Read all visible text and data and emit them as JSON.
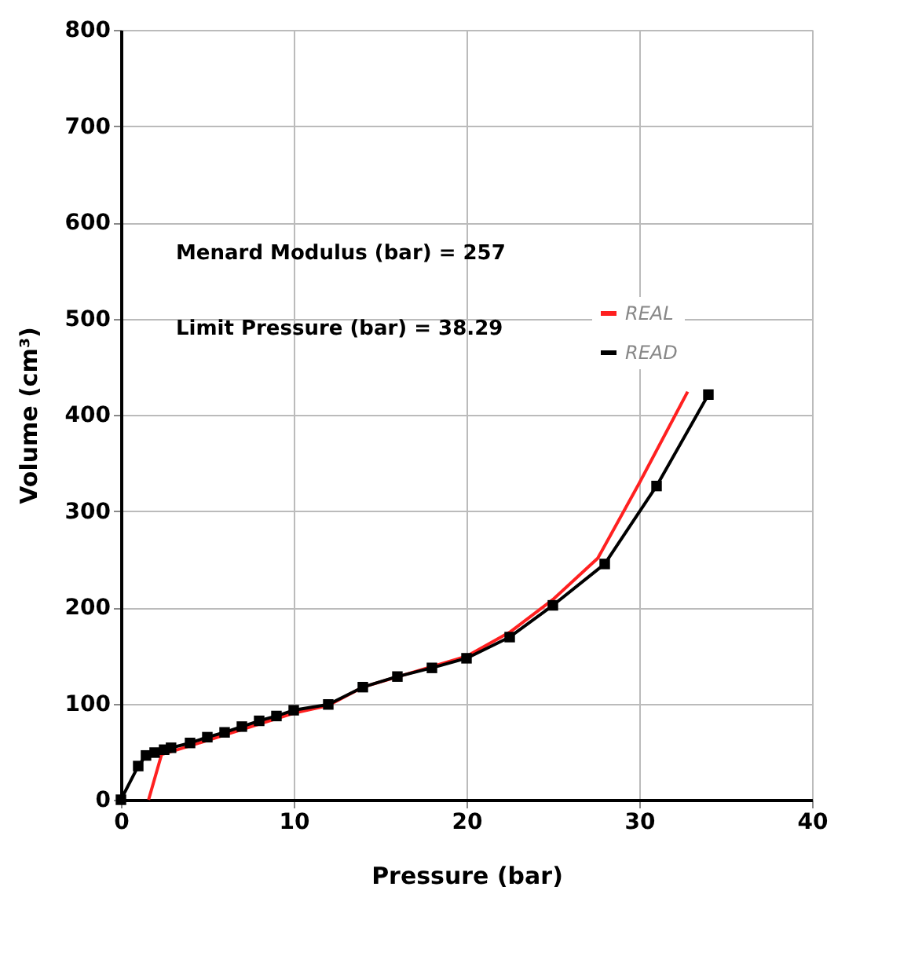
{
  "chart_data": {
    "type": "line",
    "xlabel": "Pressure (bar)",
    "ylabel": "Volume (cm³)",
    "xlim": [
      0,
      40
    ],
    "xticks": [
      0,
      10,
      20,
      30,
      40
    ],
    "ylim": [
      0,
      800
    ],
    "yticks": [
      0,
      100,
      200,
      300,
      400,
      500,
      600,
      700,
      800
    ],
    "grid": true,
    "legend": "top right",
    "line_style": "solid",
    "annotations": [
      "Menard Modulus (bar) = 257",
      "Limit Pressure (bar) = 38.29"
    ],
    "series": [
      {
        "name": "REAL",
        "color": "#ff2020",
        "marker": "none",
        "x": [
          1.6,
          2.35,
          4,
          10,
          12,
          14,
          20,
          22.5,
          25,
          27.6,
          30,
          32.8
        ],
        "values": [
          0,
          47,
          56,
          90,
          98,
          117,
          149,
          174,
          208,
          251,
          329,
          424
        ]
      },
      {
        "name": "READ",
        "color": "#000000",
        "marker": "square",
        "x": [
          0,
          1.0,
          1.45,
          1.95,
          2.5,
          2.9,
          4,
          5,
          6,
          7,
          8,
          9,
          10,
          12,
          14,
          16,
          18,
          20,
          22.5,
          25,
          28,
          31,
          34
        ],
        "values": [
          0,
          35,
          46,
          49,
          52,
          54,
          59,
          65,
          70,
          76,
          82,
          87,
          93,
          99,
          117,
          128,
          137,
          147,
          169,
          202,
          245,
          326,
          421
        ]
      }
    ]
  }
}
